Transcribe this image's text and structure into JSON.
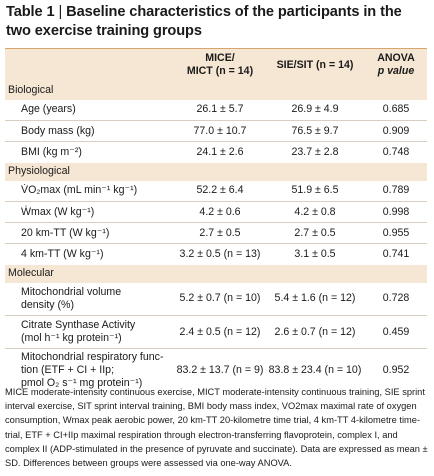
{
  "title": {
    "label": "Table 1",
    "separator": " | ",
    "text": "Baseline characteristics of the participants in the two exercise training groups"
  },
  "header": {
    "col1_line1": "MICE/",
    "col1_line2": "MICT (n = 14)",
    "col2": "SIE/SIT (n = 14)",
    "col3_line1": "ANOVA",
    "col3_line2": "p value"
  },
  "sections": {
    "biological": "Biological",
    "physiological": "Physiological",
    "molecular": "Molecular"
  },
  "rows": {
    "age": {
      "param": "Age (years)",
      "mice": "26.1 ± 5.7",
      "sie": "26.9 ± 4.9",
      "p": "0.685"
    },
    "mass": {
      "param": "Body mass (kg)",
      "mice": "77.0 ± 10.7",
      "sie": "76.5 ± 9.7",
      "p": "0.909"
    },
    "bmi": {
      "param": "BMI (kg m⁻²)",
      "mice": "24.1 ± 2.6",
      "sie": "23.7 ± 2.8",
      "p": "0.748"
    },
    "vo2": {
      "param": "V̇O₂max (mL min⁻¹ kg⁻¹)",
      "mice": "52.2 ± 6.4",
      "sie": "51.9 ± 6.5",
      "p": "0.789"
    },
    "wmax": {
      "param": "Ẇmax (W kg⁻¹)",
      "mice": "4.2 ± 0.6",
      "sie": "4.2 ± 0.8",
      "p": "0.998"
    },
    "tt20": {
      "param": "20 km-TT (W kg⁻¹)",
      "mice": "2.7 ± 0.5",
      "sie": "2.7 ± 0.5",
      "p": "0.955"
    },
    "tt4": {
      "param": "4 km-TT (W kg⁻¹)",
      "mice": "3.2 ± 0.5 (n = 13)",
      "sie": "3.1 ± 0.5",
      "p": "0.741"
    },
    "mito": {
      "param_line1": "Mitochondrial volume",
      "param_line2": "density (%)",
      "mice": "5.2 ± 0.7 (n = 10)",
      "sie": "5.4 ± 1.6 (n = 12)",
      "p": "0.728"
    },
    "cs": {
      "param_line1": "Citrate Synthase Activity",
      "param_line2": "(mol h⁻¹ kg protein⁻¹)",
      "mice": "2.4 ± 0.5 (n = 12)",
      "sie": "2.6 ± 0.7 (n = 12)",
      "p": "0.459"
    },
    "resp": {
      "param_line1": "Mitochondrial respiratory func-",
      "param_line2": "tion (ETF + CI + IIp;",
      "param_line3": "pmol O₂ s⁻¹ mg protein⁻¹)",
      "mice": "83.2 ± 13.7 (n = 9)",
      "sie": "83.8 ± 23.4 (n = 10)",
      "p": "0.952"
    }
  },
  "footnote": "MICE moderate-intensity continuous exercise, MICT moderate-intensity continuous training, SIE sprint interval exercise, SIT sprint interval training, BMI body mass index, VO2max maximal rate of oxygen consumption, Wmax peak aerobic power, 20 km-TT 20-kilometre time trial, 4 km-TT 4-kilometre time-trial, ETF + CI+IIp maximal respiration through electron-transferring flavoprotein, complex I, and complex II (ADP-stimulated in the presence of pyruvate and succinate). Data are expressed as mean ± SD. Differences between groups were assessed via one-way ANOVA."
}
